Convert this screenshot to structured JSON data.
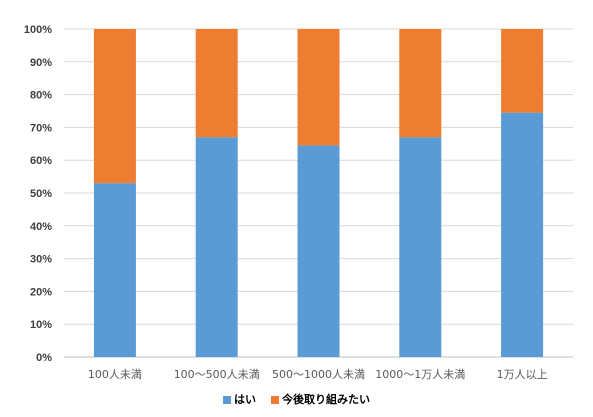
{
  "chart_data": {
    "type": "bar",
    "stacked": true,
    "percent_scale": true,
    "categories": [
      "100人未満",
      "100～500人未満",
      "500～1000人未満",
      "1000～1万人未満",
      "1万人以上"
    ],
    "series": [
      {
        "name": "はい",
        "values": [
          53,
          67,
          64.5,
          67,
          74.5
        ],
        "color": "#5b9bd5"
      },
      {
        "name": "今後取り組みたい",
        "values": [
          47,
          33,
          35.5,
          33,
          25.5
        ],
        "color": "#ed7d31"
      }
    ],
    "ylim": [
      0,
      100
    ],
    "yticks": [
      "0%",
      "10%",
      "20%",
      "30%",
      "40%",
      "50%",
      "60%",
      "70%",
      "80%",
      "90%",
      "100%"
    ],
    "grid": true,
    "legend_position": "bottom"
  }
}
